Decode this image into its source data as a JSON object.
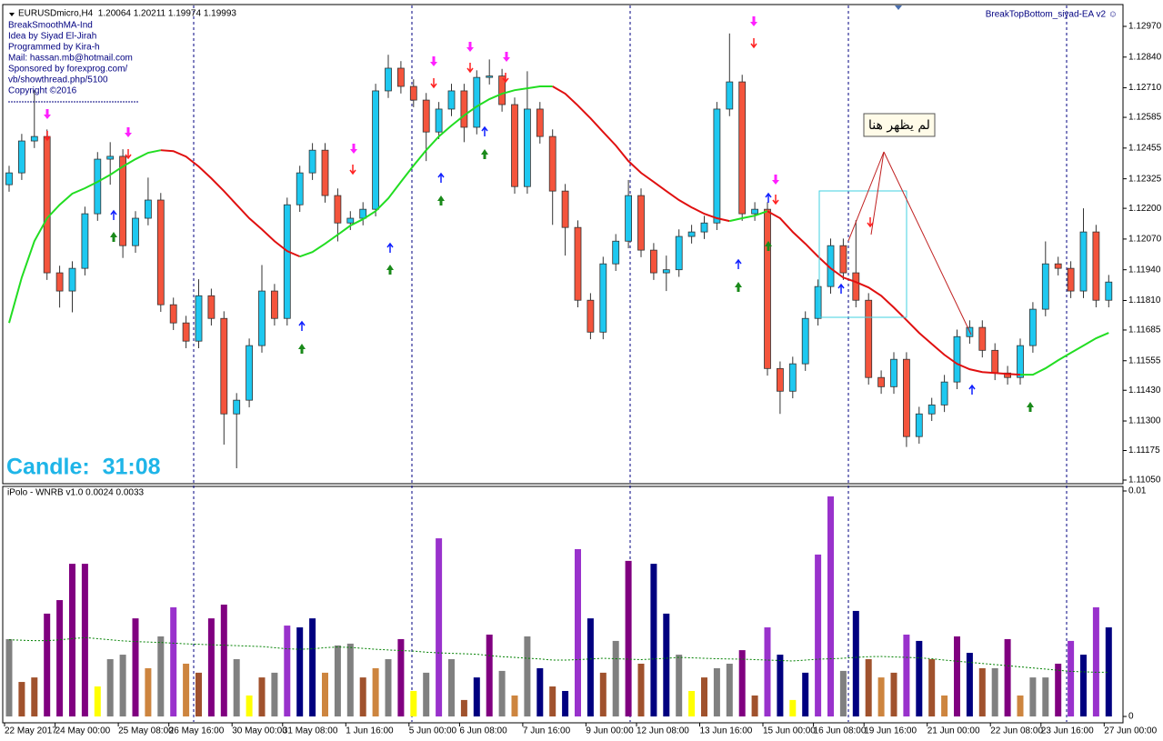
{
  "header": {
    "symbol_line": "EURUSDmicro,H4  1.20064 1.20211 1.19974 1.19993",
    "info_lines": [
      "BreakSmoothMA-Ind",
      "Idea by Siyad El-Jirah",
      "Programmed by Kira-h",
      "Mail: hassan.mb@hotmail.com",
      "Sponsored by forexprog.com/",
      "vb/showthread.php/5100",
      "Copyright ©2016"
    ],
    "ea_name": "BreakTopBottom_siyad-EA v2 ☺",
    "candle_timer": "Candle:  31:08",
    "annotation": "لم يظهر هنا"
  },
  "chart_data": [
    {
      "type": "candlestick",
      "categories": [
        "22 May 2017",
        null,
        null,
        null,
        "24 May 00:00",
        null,
        null,
        null,
        null,
        "25 May 08:00",
        null,
        null,
        null,
        "26 May 16:00",
        null,
        null,
        null,
        null,
        "30 May 00:00",
        null,
        null,
        null,
        "31 May 08:00",
        null,
        null,
        null,
        null,
        "1 Jun 16:00",
        null,
        null,
        null,
        null,
        "5 Jun 00:00",
        null,
        null,
        null,
        "6 Jun 08:00",
        null,
        null,
        null,
        null,
        "7 Jun 16:00",
        null,
        null,
        null,
        null,
        "9 Jun 00:00",
        null,
        null,
        null,
        "12 Jun 08:00",
        null,
        null,
        null,
        null,
        "13 Jun 16:00",
        null,
        null,
        null,
        null,
        "15 Jun 00:00",
        null,
        null,
        null,
        "16 Jun 08:00",
        null,
        null,
        null,
        "19 Jun 16:00",
        null,
        null,
        null,
        null,
        "21 Jun 00:00",
        null,
        null,
        null,
        null,
        "22 Jun 08:00",
        null,
        null,
        null,
        "23 Jun 16:00",
        null,
        null,
        null,
        null,
        "27 Jun 00:00"
      ],
      "open": [
        1.123,
        1.1235,
        1.12485,
        1.12504,
        1.11927,
        1.1185,
        1.11946,
        1.12177,
        1.12408,
        1.1242,
        1.12042,
        1.12158,
        1.12235,
        1.11792,
        1.11715,
        1.11638,
        1.1183,
        1.11734,
        1.1133,
        1.11388,
        1.11619,
        1.1185,
        1.11734,
        1.12215,
        1.1235,
        1.12446,
        1.12254,
        1.12138,
        1.12158,
        1.12196,
        1.12697,
        1.12793,
        1.12716,
        1.12658,
        1.12523,
        1.1262,
        1.12697,
        1.12543,
        1.12754,
        1.1276,
        1.12639,
        1.12292,
        1.1262,
        1.12504,
        1.12273,
        1.12119,
        1.11811,
        1.11676,
        1.11965,
        1.12061,
        1.12254,
        1.12023,
        1.11927,
        1.1194,
        1.12081,
        1.121,
        1.12138,
        1.1262,
        1.12735,
        1.12177,
        1.12196,
        1.11522,
        1.11426,
        1.11542,
        1.11734,
        1.11869,
        1.12042,
        1.11927,
        1.11811,
        1.11484,
        1.11445,
        1.11561,
        1.11234,
        1.1133,
        1.11368,
        1.11465,
        1.11657,
        1.11696,
        1.11599,
        1.11503,
        1.11484,
        1.11619,
        1.11773,
        1.11965,
        1.11946,
        1.1185,
        1.121,
        1.11811
      ],
      "high": [
        1.1238,
        1.12515,
        1.127,
        1.12534,
        1.11957,
        1.11976,
        1.12207,
        1.12438,
        1.1248,
        1.1245,
        1.12188,
        1.1233,
        1.12265,
        1.11822,
        1.11745,
        1.119,
        1.1186,
        1.11764,
        1.11418,
        1.11649,
        1.1196,
        1.1188,
        1.12245,
        1.1238,
        1.12476,
        1.12476,
        1.12284,
        1.12188,
        1.12226,
        1.12727,
        1.1285,
        1.12823,
        1.12746,
        1.12688,
        1.1265,
        1.12727,
        1.12727,
        1.12784,
        1.1283,
        1.1279,
        1.12669,
        1.1278,
        1.1265,
        1.12534,
        1.12303,
        1.12149,
        1.11841,
        1.11995,
        1.12091,
        1.1232,
        1.12284,
        1.12053,
        1.12,
        1.12111,
        1.1213,
        1.12168,
        1.1265,
        1.1294,
        1.12765,
        1.12226,
        1.12226,
        1.11552,
        1.11572,
        1.11764,
        1.11899,
        1.12072,
        1.12072,
        1.1215,
        1.11841,
        1.11514,
        1.11591,
        1.11591,
        1.1136,
        1.11398,
        1.11495,
        1.11687,
        1.11726,
        1.11726,
        1.11629,
        1.11533,
        1.11649,
        1.11803,
        1.1206,
        1.11995,
        1.11976,
        1.122,
        1.1213,
        1.11918
      ],
      "low": [
        1.1227,
        1.1232,
        1.12455,
        1.11897,
        1.1178,
        1.1176,
        1.11916,
        1.12147,
        1.123,
        1.1199,
        1.12012,
        1.12128,
        1.11762,
        1.11685,
        1.11608,
        1.11608,
        1.11704,
        1.112,
        1.111,
        1.11358,
        1.11589,
        1.11704,
        1.11704,
        1.12185,
        1.1232,
        1.12224,
        1.1206,
        1.12108,
        1.12128,
        1.12166,
        1.12667,
        1.12686,
        1.12628,
        1.124,
        1.12493,
        1.1259,
        1.1248,
        1.12513,
        1.12724,
        1.12609,
        1.12262,
        1.12262,
        1.12474,
        1.1213,
        1.12,
        1.11781,
        1.11646,
        1.11646,
        1.11935,
        1.12031,
        1.11993,
        1.11897,
        1.1185,
        1.1191,
        1.12051,
        1.1207,
        1.12108,
        1.1259,
        1.12147,
        1.12147,
        1.11492,
        1.1133,
        1.11396,
        1.11512,
        1.11704,
        1.11839,
        1.11897,
        1.11781,
        1.11454,
        1.11415,
        1.11415,
        1.1119,
        1.11204,
        1.113,
        1.11338,
        1.11435,
        1.11627,
        1.11569,
        1.11473,
        1.11454,
        1.11454,
        1.11589,
        1.11743,
        1.11916,
        1.1182,
        1.1182,
        1.11781,
        1.11781
      ],
      "close": [
        1.1235,
        1.12485,
        1.12504,
        1.11927,
        1.1185,
        1.11946,
        1.12177,
        1.12408,
        1.1242,
        1.12042,
        1.12158,
        1.12235,
        1.11792,
        1.11715,
        1.11638,
        1.1183,
        1.11734,
        1.1133,
        1.11388,
        1.11619,
        1.1185,
        1.11734,
        1.12215,
        1.1235,
        1.12446,
        1.12254,
        1.12138,
        1.12158,
        1.12196,
        1.12697,
        1.12793,
        1.12716,
        1.12658,
        1.12523,
        1.1262,
        1.12697,
        1.12543,
        1.12754,
        1.1276,
        1.12639,
        1.12292,
        1.1262,
        1.12504,
        1.12273,
        1.12119,
        1.11811,
        1.11676,
        1.11965,
        1.12061,
        1.12254,
        1.12023,
        1.11927,
        1.1194,
        1.12081,
        1.121,
        1.12138,
        1.1262,
        1.12735,
        1.12177,
        1.12196,
        1.11522,
        1.11426,
        1.11542,
        1.11734,
        1.11869,
        1.12042,
        1.11927,
        1.11811,
        1.11484,
        1.11445,
        1.11561,
        1.11234,
        1.1133,
        1.11368,
        1.11465,
        1.11657,
        1.11696,
        1.11599,
        1.11503,
        1.11484,
        1.11619,
        1.11773,
        1.11965,
        1.11946,
        1.1185,
        1.121,
        1.11811,
        1.11888
      ],
      "up_color": "#1ec8f0",
      "down_color": "#f4543c",
      "ma": {
        "values": [
          1.11715,
          1.11907,
          1.12061,
          1.12158,
          1.12215,
          1.12262,
          1.12285,
          1.12312,
          1.12342,
          1.12377,
          1.12408,
          1.12435,
          1.12446,
          1.12442,
          1.12419,
          1.12377,
          1.12327,
          1.12273,
          1.12215,
          1.12158,
          1.12111,
          1.12061,
          1.12019,
          1.11996,
          1.12015,
          1.1205,
          1.12088,
          1.12127,
          1.12154,
          1.12188,
          1.12242,
          1.12312,
          1.12381,
          1.12446,
          1.12504,
          1.1255,
          1.12593,
          1.12631,
          1.12662,
          1.12685,
          1.127,
          1.12708,
          1.12716,
          1.12716,
          1.12685,
          1.12635,
          1.12581,
          1.12523,
          1.12466,
          1.124,
          1.1235,
          1.12312,
          1.12273,
          1.12235,
          1.12204,
          1.12177,
          1.12158,
          1.12146,
          1.12158,
          1.12169,
          1.12188,
          1.12158,
          1.121,
          1.1205,
          1.11996,
          1.11946,
          1.11907,
          1.11888,
          1.11865,
          1.1183,
          1.1178,
          1.11727,
          1.11673,
          1.11626,
          1.1158,
          1.11542,
          1.11519,
          1.11507,
          1.11503,
          1.11499,
          1.11496,
          1.11496,
          1.11523,
          1.11557,
          1.11588,
          1.11619,
          1.1165,
          1.11673
        ],
        "up_color": "#22dd22",
        "down_color": "#e01010"
      },
      "ylim": [
        1.1105,
        1.1297
      ],
      "yticks": [
        {
          "value": 1.1297,
          "label": "1.12970"
        },
        {
          "value": 1.1284,
          "label": "1.12840"
        },
        {
          "value": 1.1271,
          "label": "1.12710"
        },
        1.12585,
        1.12455,
        1.12325,
        {
          "value": 1.122,
          "label": "1.12200"
        },
        {
          "value": 1.1207,
          "label": "1.12070"
        },
        {
          "value": 1.1194,
          "label": "1.11940"
        },
        {
          "value": 1.1181,
          "label": "1.11810"
        },
        1.11685,
        1.11555,
        {
          "value": 1.1143,
          "label": "1.11430"
        },
        {
          "value": 1.113,
          "label": "1.11300"
        },
        1.11175,
        {
          "value": 1.1105,
          "label": "1.11050"
        }
      ]
    },
    {
      "type": "bar",
      "title": "iPolo - WNRB v1.0 0.0024 0.0033",
      "values": [
        0.00343,
        0.00153,
        0.00173,
        0.00456,
        0.00516,
        0.00677,
        0.00677,
        0.00133,
        0.00254,
        0.00274,
        0.00435,
        0.00214,
        0.00355,
        0.00484,
        0.00234,
        0.00194,
        0.00435,
        0.00496,
        0.00254,
        0.00093,
        0.00173,
        0.00194,
        0.00403,
        0.00395,
        0.00435,
        0.00194,
        0.00315,
        0.00323,
        0.00173,
        0.00214,
        0.00254,
        0.00343,
        0.00113,
        0.00194,
        0.0079,
        0.00254,
        0.00073,
        0.00173,
        0.00363,
        0.00202,
        0.00093,
        0.00355,
        0.00214,
        0.00133,
        0.00113,
        0.00742,
        0.00435,
        0.00194,
        0.00335,
        0.0069,
        0.00234,
        0.00677,
        0.00456,
        0.00274,
        0.00113,
        0.00173,
        0.00214,
        0.00234,
        0.00294,
        0.00093,
        0.00395,
        0.00274,
        0.00073,
        0.00194,
        0.00718,
        0.00976,
        0.00202,
        0.00468,
        0.00254,
        0.00173,
        0.00194,
        0.00363,
        0.00335,
        0.00254,
        0.00093,
        0.00355,
        0.00282,
        0.00214,
        0.00214,
        0.00343,
        0.00093,
        0.00173,
        0.00173,
        0.00234,
        0.00335,
        0.00274,
        0.00484,
        0.00395
      ],
      "colors": [
        "#808080",
        "#a0522d",
        "#a0522d",
        "#800080",
        "#800080",
        "#800080",
        "#800080",
        "#ffff00",
        "#808080",
        "#808080",
        "#800080",
        "#cd853f",
        "#808080",
        "#9932cc",
        "#cd853f",
        "#a0522d",
        "#800080",
        "#800080",
        "#808080",
        "#ffff00",
        "#a0522d",
        "#808080",
        "#9932cc",
        "#000080",
        "#000080",
        "#cd853f",
        "#808080",
        "#808080",
        "#a0522d",
        "#cd853f",
        "#808080",
        "#800080",
        "#ffff00",
        "#808080",
        "#9932cc",
        "#808080",
        "#a0522d",
        "#000080",
        "#800080",
        "#808080",
        "#cd853f",
        "#808080",
        "#000080",
        "#a0522d",
        "#000080",
        "#9932cc",
        "#000080",
        "#a0522d",
        "#808080",
        "#800080",
        "#a0522d",
        "#000080",
        "#000080",
        "#808080",
        "#ffff00",
        "#a0522d",
        "#808080",
        "#808080",
        "#800080",
        "#a0522d",
        "#9932cc",
        "#000080",
        "#ffff00",
        "#000080",
        "#9932cc",
        "#9932cc",
        "#808080",
        "#000080",
        "#a0522d",
        "#cd853f",
        "#a0522d",
        "#9932cc",
        "#000080",
        "#a0522d",
        "#cd853f",
        "#800080",
        "#000080",
        "#a0522d",
        "#808080",
        "#800080",
        "#cd853f",
        "#808080",
        "#808080",
        "#800080",
        "#9932cc",
        "#000080",
        "#9932cc",
        "#000080"
      ],
      "average": {
        "color": "#008000",
        "values": [
          0.0034,
          0.00338,
          0.00336,
          0.00336,
          0.0034,
          0.00345,
          0.0035,
          0.00345,
          0.0034,
          0.00335,
          0.00332,
          0.0033,
          0.00328,
          0.00325,
          0.00322,
          0.0032,
          0.00318,
          0.00316,
          0.00314,
          0.00312,
          0.0031,
          0.00305,
          0.003,
          0.00298,
          0.003,
          0.00305,
          0.00308,
          0.00306,
          0.00302,
          0.00298,
          0.00295,
          0.00292,
          0.0029,
          0.00285,
          0.00282,
          0.0028,
          0.00278,
          0.00276,
          0.0027,
          0.00265,
          0.00262,
          0.00258,
          0.00255,
          0.0025,
          0.0025,
          0.00252,
          0.00255,
          0.00258,
          0.00256,
          0.00254,
          0.00252,
          0.00255,
          0.00258,
          0.00262,
          0.0026,
          0.00258,
          0.00256,
          0.00255,
          0.00254,
          0.00252,
          0.0025,
          0.00248,
          0.00246,
          0.0025,
          0.00254,
          0.00256,
          0.00258,
          0.00262,
          0.00265,
          0.00266,
          0.00264,
          0.00262,
          0.0026,
          0.00256,
          0.0025,
          0.00245,
          0.0024,
          0.00235,
          0.0023,
          0.00225,
          0.0022,
          0.00215,
          0.0021,
          0.00205,
          0.002,
          0.00198,
          0.00196,
          0.00196
        ]
      },
      "ylim": [
        0,
        0.01
      ],
      "yticks": [
        0,
        0.01
      ]
    }
  ]
}
